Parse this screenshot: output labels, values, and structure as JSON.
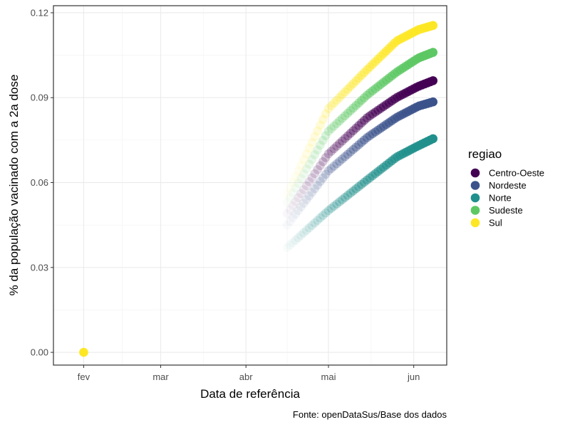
{
  "chart_data": {
    "type": "scatter",
    "xlabel": "Data de referência",
    "ylabel": "% da população vacinado com a 2a dose",
    "caption": "Fonte: openDataSus/Base dos dados",
    "x_ticks": [
      "fev",
      "mar",
      "abr",
      "mai",
      "jun"
    ],
    "x_tick_dates": [
      "2021-02-01",
      "2021-03-01",
      "2021-04-01",
      "2021-05-01",
      "2021-06-01"
    ],
    "xlim": [
      "2021-01-21",
      "2021-06-13"
    ],
    "ylim": [
      -0.0045,
      0.1225
    ],
    "y_ticks": [
      0.0,
      0.03,
      0.06,
      0.09,
      0.12
    ],
    "y_tick_labels": [
      "0.00",
      "0.03",
      "0.06",
      "0.09",
      "0.12"
    ],
    "grid": true,
    "legend": {
      "title": "regiao",
      "position": "right",
      "entries": [
        "Centro-Oeste",
        "Nordeste",
        "Norte",
        "Sudeste",
        "Sul"
      ]
    },
    "alpha_fades_in_over_time": true,
    "series": [
      {
        "name": "Centro-Oeste",
        "color": "#440154",
        "x_start": "2021-04-16",
        "x_end": "2021-06-08",
        "y_start": 0.049,
        "y_end": 0.096,
        "curve": [
          [
            0.0,
            0.049
          ],
          [
            0.28,
            0.07
          ],
          [
            0.55,
            0.083
          ],
          [
            0.75,
            0.09
          ],
          [
            0.9,
            0.094
          ],
          [
            1.0,
            0.096
          ]
        ]
      },
      {
        "name": "Nordeste",
        "color": "#3B528B",
        "x_start": "2021-04-16",
        "x_end": "2021-06-08",
        "y_start": 0.045,
        "y_end": 0.0885,
        "curve": [
          [
            0.0,
            0.045
          ],
          [
            0.28,
            0.064
          ],
          [
            0.55,
            0.076
          ],
          [
            0.75,
            0.083
          ],
          [
            0.9,
            0.087
          ],
          [
            1.0,
            0.0885
          ]
        ]
      },
      {
        "name": "Norte",
        "color": "#21908C",
        "x_start": "2021-04-16",
        "x_end": "2021-06-08",
        "y_start": 0.037,
        "y_end": 0.0755,
        "curve": [
          [
            0.0,
            0.037
          ],
          [
            0.28,
            0.05
          ],
          [
            0.55,
            0.061
          ],
          [
            0.75,
            0.069
          ],
          [
            0.9,
            0.073
          ],
          [
            1.0,
            0.0755
          ]
        ]
      },
      {
        "name": "Sudeste",
        "color": "#5DC863",
        "x_start": "2021-04-16",
        "x_end": "2021-06-08",
        "y_start": 0.053,
        "y_end": 0.106,
        "curve": [
          [
            0.0,
            0.053
          ],
          [
            0.28,
            0.078
          ],
          [
            0.55,
            0.091
          ],
          [
            0.75,
            0.099
          ],
          [
            0.9,
            0.104
          ],
          [
            1.0,
            0.106
          ]
        ]
      },
      {
        "name": "Sul",
        "color": "#FDE725",
        "x_start": "2021-04-16",
        "x_end": "2021-06-08",
        "y_start": 0.056,
        "y_end": 0.1155,
        "curve": [
          [
            0.0,
            0.056
          ],
          [
            0.28,
            0.086
          ],
          [
            0.55,
            0.1
          ],
          [
            0.75,
            0.11
          ],
          [
            0.9,
            0.114
          ],
          [
            1.0,
            0.1155
          ]
        ],
        "extra_points": [
          {
            "x": "2021-02-01",
            "y": 0.0
          }
        ]
      }
    ]
  }
}
